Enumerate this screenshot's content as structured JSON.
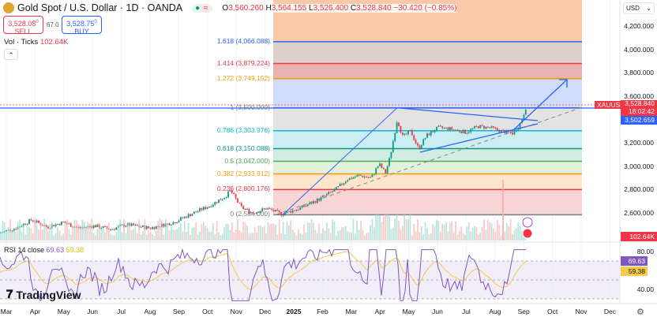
{
  "header": {
    "symbol_title": "Gold Spot / U.S. Dollar · 1D · OANDA",
    "status_icon": "market-open-dot",
    "replay_icon": "approx-icon",
    "ohlc": {
      "o_label": "O",
      "o": "3,560.260",
      "h_label": "H",
      "h": "3,564.155",
      "l_label": "L",
      "l": "3,526.400",
      "c_label": "C",
      "c": "3,528.840",
      "change": "−30.420 (−0.85%)"
    }
  },
  "trade": {
    "sell_price": "3,528.08",
    "sell_sup": "0",
    "sell_label": "SELL",
    "spread": "67.0",
    "buy_price": "3,528.75",
    "buy_sup": "0",
    "buy_label": "BUY"
  },
  "volume": {
    "label": "Vol · Ticks",
    "value": "102.64K"
  },
  "fib_levels": [
    {
      "label": "1.618 (4,066.088)",
      "price": 4066.088,
      "color": "#2962ff"
    },
    {
      "label": "1.414 (3,879.224)",
      "price": 3879.224,
      "color": "#f23645"
    },
    {
      "label": "1.272 (3,749.152)",
      "price": 3749.152,
      "color": "#ff9800"
    },
    {
      "label": "1 (3,500.000)",
      "price": 3500,
      "color": "#787b86"
    },
    {
      "label": "0.786 (3,303.976)",
      "price": 3303.976,
      "color": "#00bcd4"
    },
    {
      "label": "0.618 (3,150.088)",
      "price": 3150.088,
      "color": "#089981"
    },
    {
      "label": "0.5 (3,042.000)",
      "price": 3042,
      "color": "#4caf50"
    },
    {
      "label": "0.382 (2,933.912)",
      "price": 2933.912,
      "color": "#ff9800"
    },
    {
      "label": "0.236 (2,800.176)",
      "price": 2800.176,
      "color": "#f23645"
    },
    {
      "label": "0 (2,584.000)",
      "price": 2584,
      "color": "#787b86"
    }
  ],
  "price_axis": {
    "currency": "USD",
    "ticks": [
      "4,200.000",
      "4,000.000",
      "3,800.000",
      "3,600.000",
      "3,200.000",
      "3,000.000",
      "2,800.000",
      "2,600.000"
    ],
    "tick_values": [
      4200,
      4000,
      3800,
      3600,
      3200,
      3000,
      2800,
      2600
    ]
  },
  "price_tags": {
    "symbol": "XAUUSD",
    "last": "3,528.840",
    "countdown": "18:02:42",
    "line_price": "3,502.659",
    "volume": "102.64K"
  },
  "rsi": {
    "label": "RSI 14 close",
    "value": "69.63",
    "ma": "59.38",
    "ticks": [
      "80.00",
      "40.00"
    ]
  },
  "time_axis": [
    "Mar",
    "Apr",
    "May",
    "Jun",
    "Jul",
    "Aug",
    "Sep",
    "Oct",
    "Nov",
    "Dec",
    "2025",
    "Feb",
    "Mar",
    "Apr",
    "May",
    "Jun",
    "Jul",
    "Aug",
    "Sep",
    "Oct",
    "Nov",
    "Dec"
  ],
  "branding": "TradingView",
  "colors": {
    "up": "#089981",
    "down": "#f23645",
    "accent": "#2962ff",
    "rsi": "#7e57c2",
    "rsi_ma": "#f7c948"
  }
}
